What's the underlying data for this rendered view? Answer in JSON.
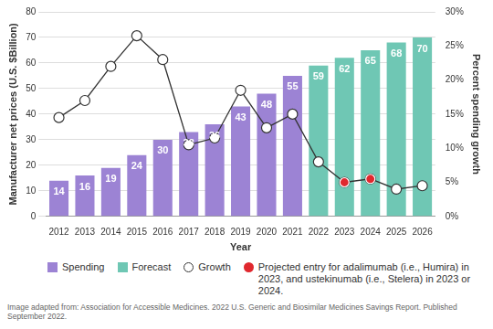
{
  "chart_data": {
    "type": "bar",
    "x_label": "Year",
    "y_label": "Manufacturer net prices (U.S. $Billion)",
    "y2_label": "Percent spending growth",
    "source": "Image adapted from: Association for Accessible Medicines. 2022 U.S. Generic and Biosimilar Medicines Savings Report. Published September 2022.",
    "categories": [
      "2012",
      "2013",
      "2014",
      "2015",
      "2016",
      "2017",
      "2018",
      "2019",
      "2020",
      "2021",
      "2022",
      "2023",
      "2024",
      "2025",
      "2026"
    ],
    "series": [
      {
        "name": "Spending",
        "type": "bar",
        "color": "#9c83d4",
        "data_labels": true,
        "values": [
          14,
          16,
          19,
          24,
          30,
          33,
          36,
          43,
          48,
          55,
          null,
          null,
          null,
          null,
          null
        ]
      },
      {
        "name": "Forecast",
        "type": "bar",
        "color": "#6fc7b4",
        "data_labels": true,
        "values": [
          null,
          null,
          null,
          null,
          null,
          null,
          null,
          null,
          null,
          null,
          59,
          62,
          65,
          68,
          70
        ]
      },
      {
        "name": "Growth",
        "type": "line",
        "axis": "y2",
        "color": "#333333",
        "marker": "open_circle",
        "line_style": "solid",
        "values": [
          14.5,
          17,
          22,
          26.5,
          23,
          10.5,
          11.5,
          18.5,
          13,
          15,
          8,
          5,
          5.5,
          4,
          4.5
        ]
      },
      {
        "name": "Projected entry for adalimumab (i.e., Humira) in 2023, and ustekinumab (i.e., Stelera) in 2023 or 2024.",
        "type": "scatter",
        "axis": "y2",
        "color": "#e0282e",
        "marker": "circle",
        "values": [
          null,
          null,
          null,
          null,
          null,
          null,
          null,
          null,
          null,
          null,
          null,
          5,
          5.5,
          null,
          null
        ]
      }
    ],
    "ylim": [
      0,
      80
    ],
    "yticks": [
      0,
      10,
      20,
      30,
      40,
      50,
      60,
      70,
      80
    ],
    "y2lim": [
      0,
      30
    ],
    "y2ticks": [
      {
        "value": 0,
        "label": "0%"
      },
      {
        "value": 5,
        "label": "5%"
      },
      {
        "value": 10,
        "label": "10%"
      },
      {
        "value": 15,
        "label": "15%"
      },
      {
        "value": 20,
        "label": "20%"
      },
      {
        "value": 25,
        "label": "25%"
      },
      {
        "value": 30,
        "label": "30%"
      }
    ],
    "grid": true,
    "legend": "bottom"
  }
}
